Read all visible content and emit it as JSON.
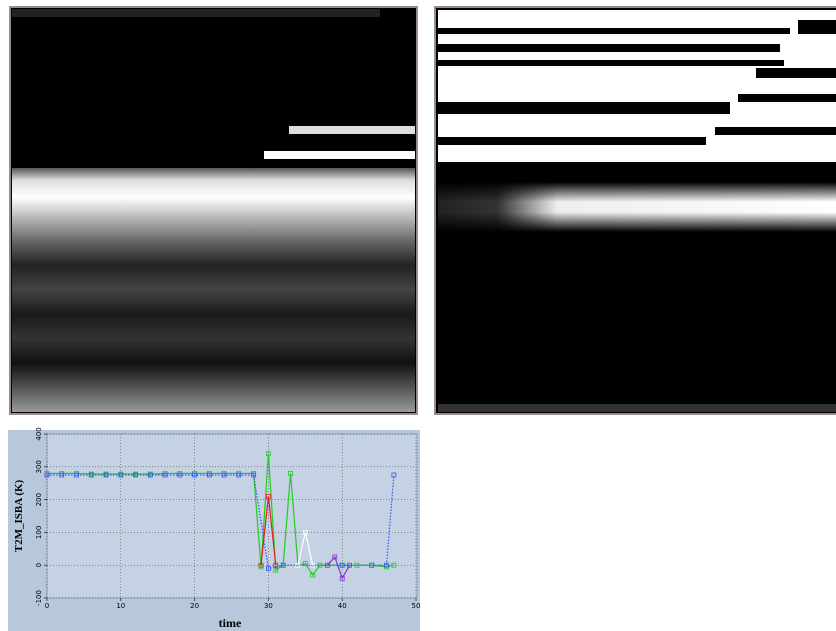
{
  "chart_data": {
    "type": "line",
    "xlabel": "time",
    "ylabel": "T2M_ISBA (K)",
    "xlim": [
      0,
      50
    ],
    "xticks": [
      0,
      10,
      20,
      30,
      40,
      50
    ],
    "ylim": [
      -100,
      400
    ],
    "yticks": [
      -100,
      0,
      100,
      200,
      300,
      400
    ],
    "grid": true,
    "series": [
      {
        "color": "#22cc22",
        "linestyle": "solid",
        "x": [
          0,
          2,
          4,
          6,
          8,
          10,
          12,
          14,
          16,
          18,
          20,
          22,
          24,
          26,
          28,
          29,
          30,
          31,
          32,
          33,
          34,
          35,
          36,
          37,
          38,
          40,
          42,
          44,
          46,
          47
        ],
        "values": [
          280,
          280,
          280,
          278,
          278,
          278,
          278,
          278,
          280,
          280,
          280,
          280,
          280,
          280,
          280,
          -5,
          340,
          -15,
          0,
          280,
          0,
          5,
          -30,
          0,
          0,
          0,
          0,
          0,
          -5,
          0
        ]
      },
      {
        "color": "#3355ff",
        "linestyle": "dotted",
        "x": [
          0,
          2,
          4,
          6,
          8,
          10,
          12,
          14,
          16,
          18,
          20,
          22,
          24,
          26,
          28,
          30,
          32,
          36,
          40,
          44,
          46,
          47
        ],
        "values": [
          275,
          275,
          275,
          275,
          275,
          275,
          275,
          275,
          275,
          275,
          275,
          275,
          275,
          275,
          275,
          -10,
          0,
          0,
          0,
          0,
          0,
          275
        ]
      },
      {
        "color": "#dd2222",
        "linestyle": "solid",
        "x": [
          29,
          30,
          31
        ],
        "values": [
          0,
          210,
          0
        ]
      },
      {
        "color": "#ffffff",
        "linestyle": "solid",
        "x": [
          34,
          35,
          36
        ],
        "values": [
          0,
          100,
          0
        ]
      },
      {
        "color": "#8833cc",
        "linestyle": "solid",
        "x": [
          38,
          39,
          40,
          41
        ],
        "values": [
          0,
          25,
          -40,
          0
        ]
      }
    ]
  }
}
